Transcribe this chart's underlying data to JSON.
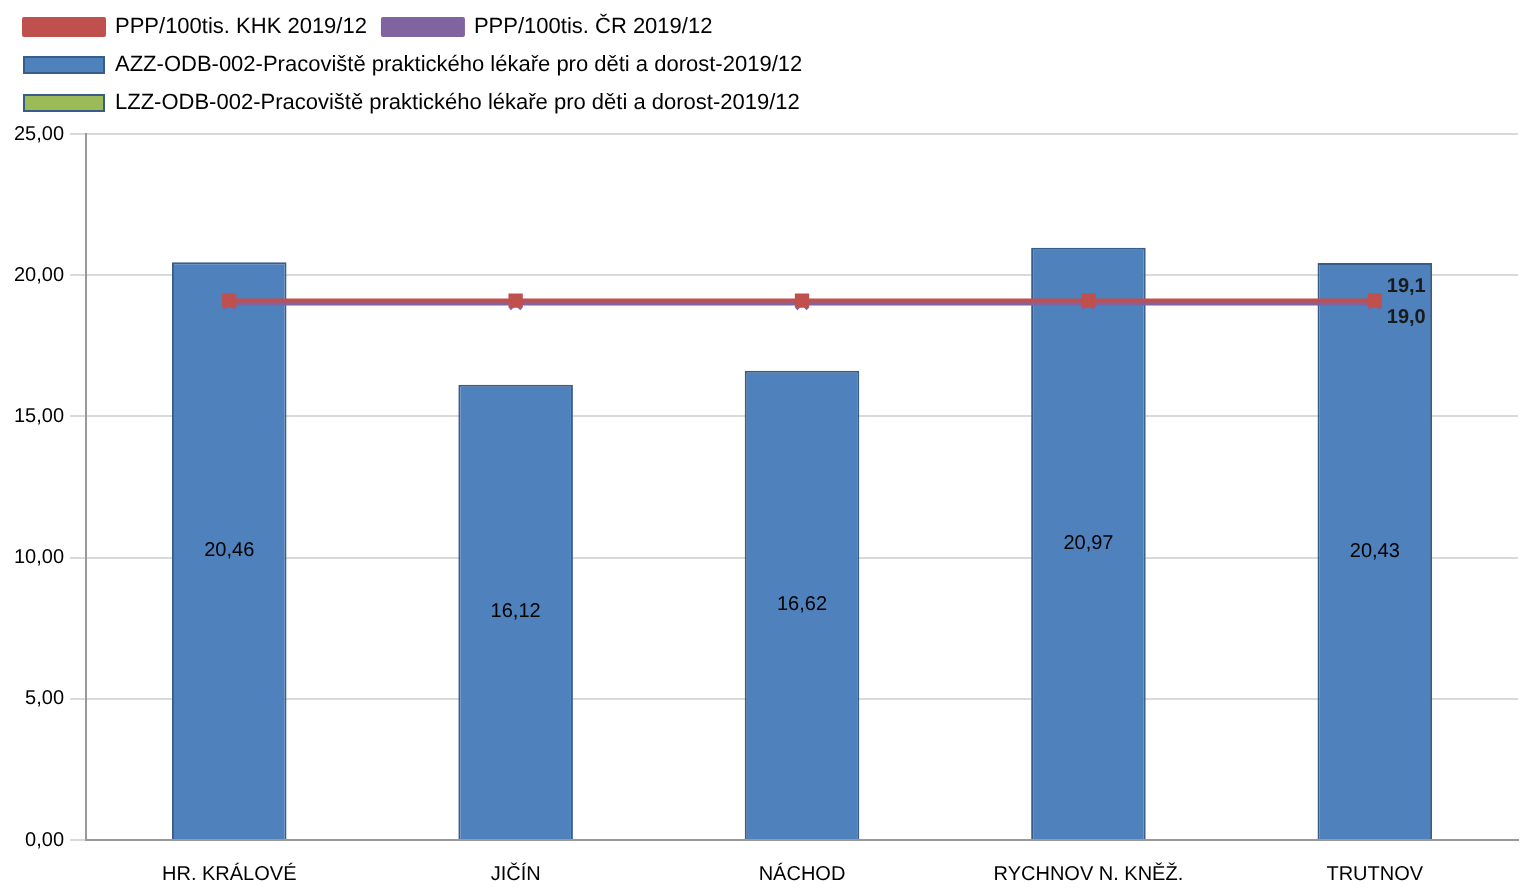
{
  "chart_data": {
    "type": "bar",
    "categories": [
      "HR. KRÁLOVÉ",
      "JIČÍN",
      "NÁCHOD",
      "RYCHNOV N. KNĚŽ.",
      "TRUTNOV"
    ],
    "series": [
      {
        "name": "AZZ-ODB-002-Pracoviště praktického lékaře pro děti a dorost-2019/12",
        "color": "#4f81bd",
        "values": [
          20.46,
          16.12,
          16.62,
          20.97,
          20.43
        ],
        "value_labels": [
          "20,46",
          "16,12",
          "16,62",
          "20,97",
          "20,43"
        ]
      },
      {
        "name": "LZZ-ODB-002-Pracoviště praktického lékaře pro děti a dorost-2019/12",
        "color": "#9bbb59",
        "values": [
          null,
          null,
          null,
          null,
          null
        ]
      },
      {
        "name": "PPP/100tis. KHK 2019/12",
        "type": "line",
        "color": "#c0504d",
        "marker": "square",
        "values": [
          19.1,
          19.1,
          19.1,
          19.1,
          19.1
        ],
        "value_labels": [
          null,
          null,
          null,
          null,
          "19,1"
        ]
      },
      {
        "name": "PPP/100tis. ČR 2019/12",
        "type": "line",
        "color": "#8064a2",
        "marker": "cross",
        "values": [
          19.0,
          19.0,
          19.0,
          19.0,
          19.0
        ],
        "value_labels": [
          null,
          null,
          null,
          null,
          "19,0"
        ]
      }
    ],
    "ylim": [
      0,
      25
    ],
    "yticks": [
      {
        "value": 0,
        "label": "0,00"
      },
      {
        "value": 5,
        "label": "5,00"
      },
      {
        "value": 10,
        "label": "10,00"
      },
      {
        "value": 15,
        "label": "15,00"
      },
      {
        "value": 20,
        "label": "20,00"
      },
      {
        "value": 25,
        "label": "25,00"
      }
    ],
    "grid": "y",
    "legend": "top"
  }
}
